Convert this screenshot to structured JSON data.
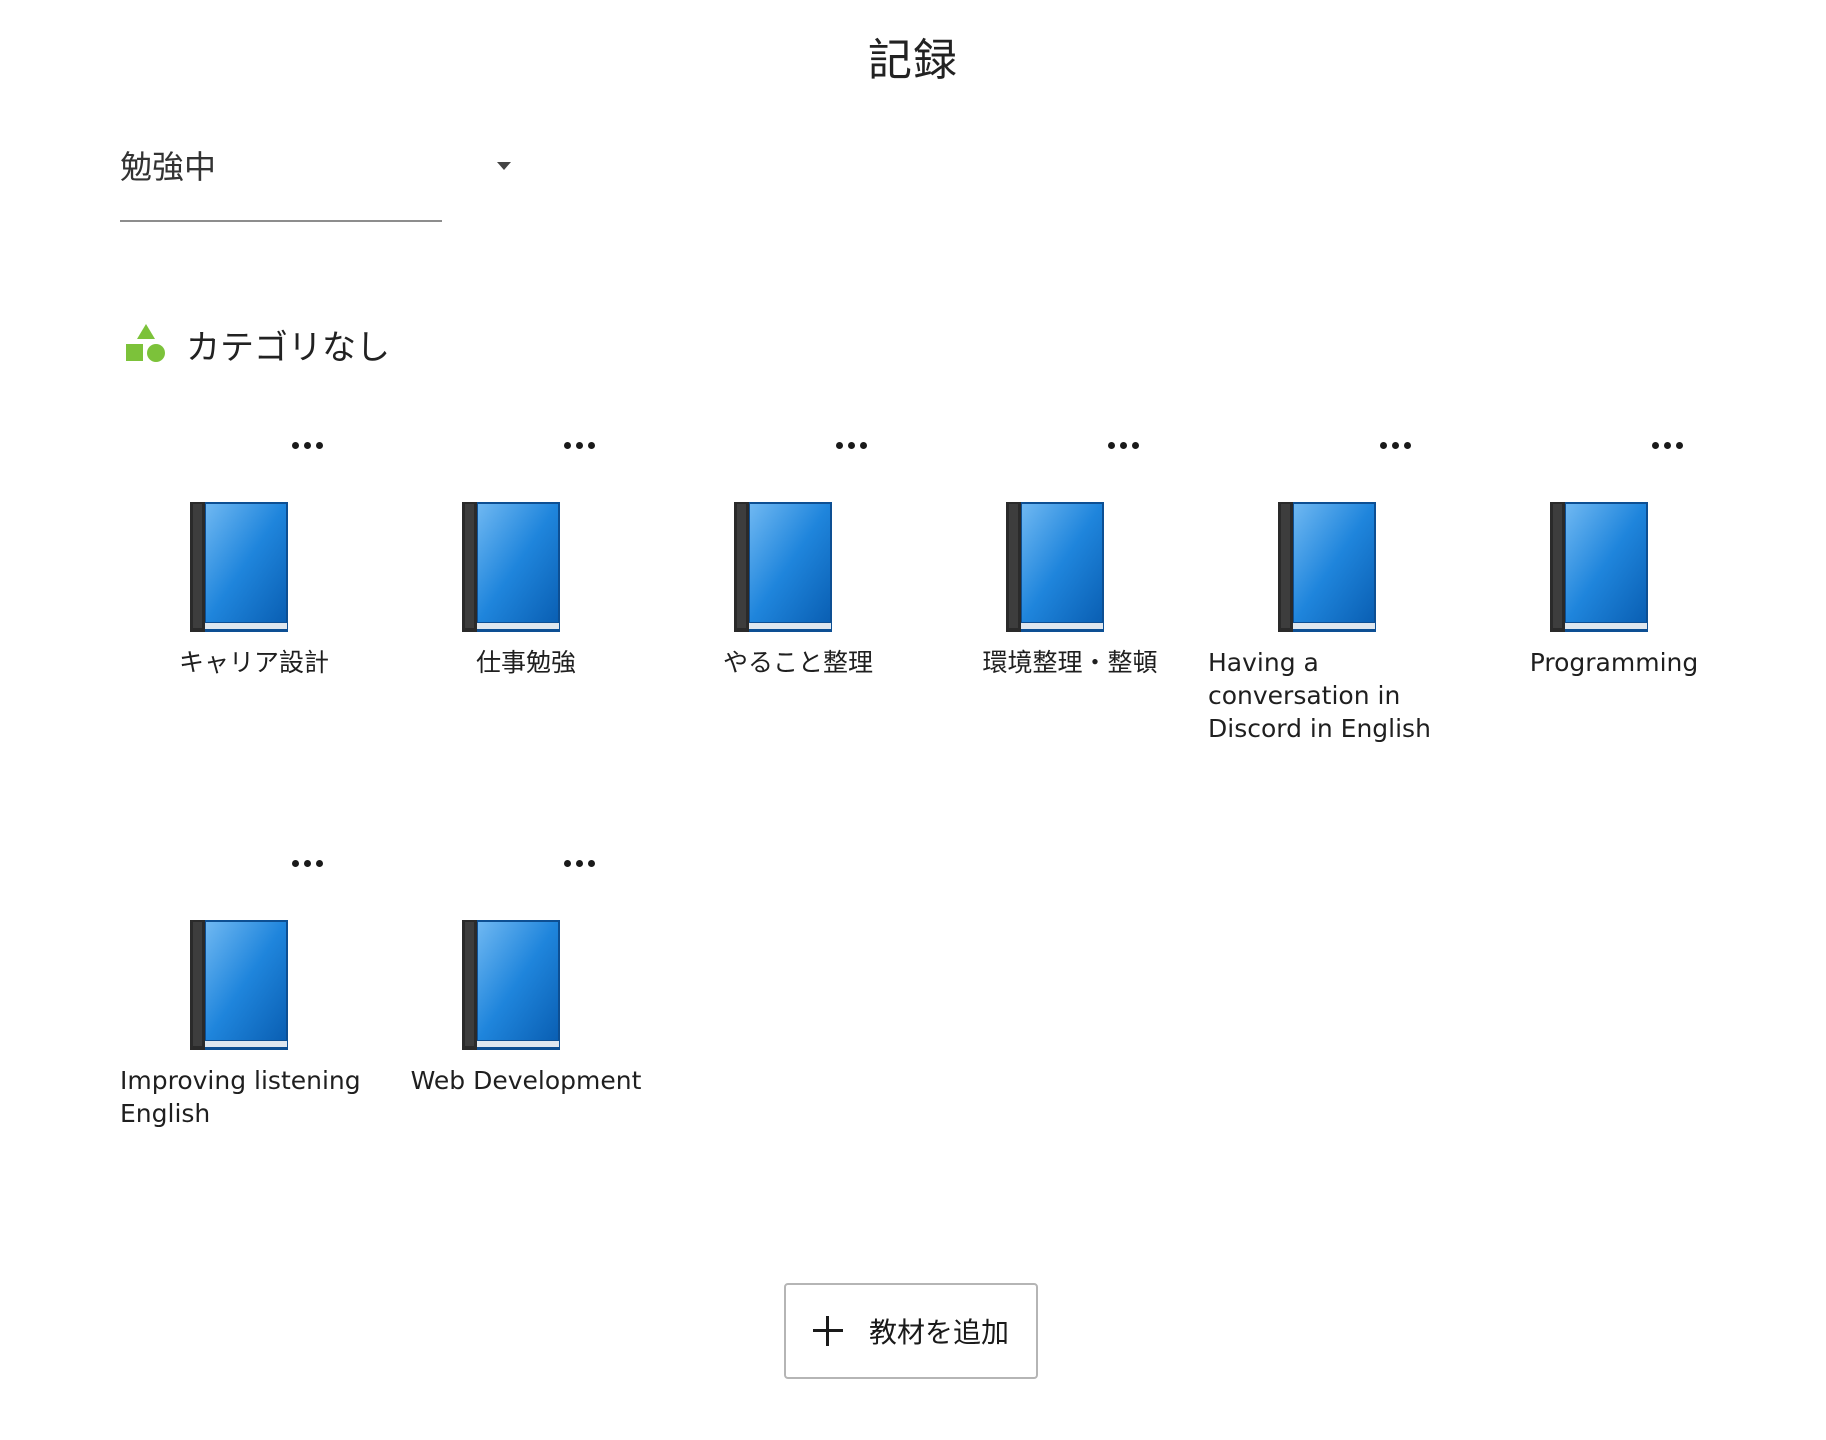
{
  "header": {
    "title": "記録"
  },
  "filter": {
    "selected": "勉強中"
  },
  "category": {
    "name": "カテゴリなし",
    "icon": "shapes-icon",
    "icon_color": "#7cc23a"
  },
  "books": [
    {
      "title": "キャリア設計"
    },
    {
      "title": "仕事勉強"
    },
    {
      "title": "やること整理"
    },
    {
      "title": "環境整理・整頓"
    },
    {
      "title": "Having a conversation in Discord in English"
    },
    {
      "title": "Programming"
    },
    {
      "title": "Improving listening English"
    },
    {
      "title": "Web Development"
    }
  ],
  "actions": {
    "add_material_label": "教材を追加",
    "more_icon": "more-horizontal-icon"
  },
  "colors": {
    "book_blue": "#1170c9",
    "book_spine": "#2a2a2a"
  }
}
